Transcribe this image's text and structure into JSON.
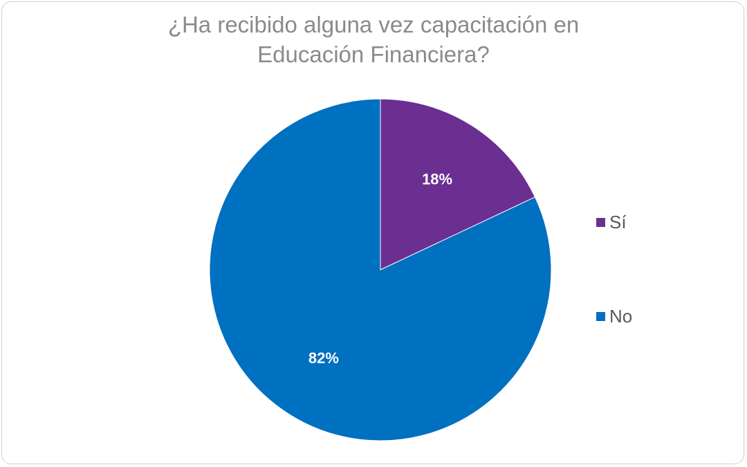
{
  "chart_data": {
    "type": "pie",
    "title_lines": [
      "¿Ha recibido alguna vez capacitación en",
      "Educación Financiera?"
    ],
    "categories": [
      "Sí",
      "No"
    ],
    "values": [
      18,
      82
    ],
    "value_labels": [
      "18%",
      "82%"
    ],
    "colors": [
      "#6a2f91",
      "#0070c0"
    ],
    "legend_position": "right",
    "start_angle": "12 o'clock, clockwise"
  }
}
